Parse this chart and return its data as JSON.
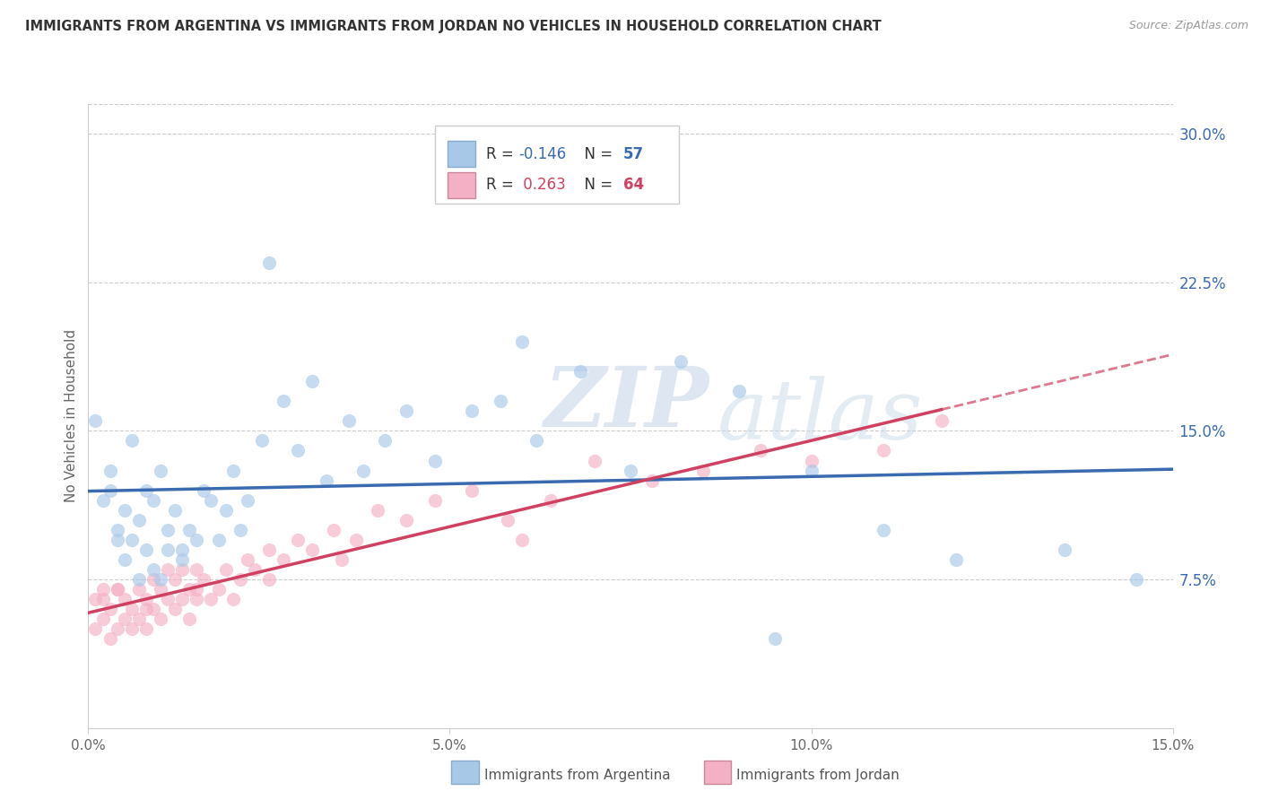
{
  "title": "IMMIGRANTS FROM ARGENTINA VS IMMIGRANTS FROM JORDAN NO VEHICLES IN HOUSEHOLD CORRELATION CHART",
  "source": "Source: ZipAtlas.com",
  "ylabel": "No Vehicles in Household",
  "legend_label1": "Immigrants from Argentina",
  "legend_label2": "Immigrants from Jordan",
  "R1": -0.146,
  "N1": 57,
  "R2": 0.263,
  "N2": 64,
  "xlim": [
    0.0,
    0.15
  ],
  "ylim": [
    0.0,
    0.315
  ],
  "xticks": [
    0.0,
    0.05,
    0.1,
    0.15
  ],
  "xtick_labels": [
    "0.0%",
    "5.0%",
    "10.0%",
    "15.0%"
  ],
  "yticks_right": [
    0.075,
    0.15,
    0.225,
    0.3
  ],
  "ytick_labels_right": [
    "7.5%",
    "15.0%",
    "22.5%",
    "30.0%"
  ],
  "color_argentina": "#a8c8e8",
  "color_jordan": "#f4b0c4",
  "line_color_argentina": "#3a6ab0",
  "line_color_jordan": "#d04060",
  "watermark_zip": "ZIP",
  "watermark_atlas": "atlas",
  "bg_color": "#ffffff",
  "scatter_alpha": 0.65,
  "scatter_size": 120,
  "argentina_x": [
    0.001,
    0.002,
    0.003,
    0.003,
    0.004,
    0.004,
    0.005,
    0.005,
    0.006,
    0.006,
    0.007,
    0.007,
    0.008,
    0.008,
    0.009,
    0.009,
    0.01,
    0.01,
    0.011,
    0.011,
    0.012,
    0.013,
    0.013,
    0.014,
    0.015,
    0.016,
    0.017,
    0.018,
    0.019,
    0.02,
    0.021,
    0.022,
    0.024,
    0.025,
    0.027,
    0.029,
    0.031,
    0.033,
    0.036,
    0.038,
    0.041,
    0.044,
    0.048,
    0.053,
    0.057,
    0.062,
    0.068,
    0.075,
    0.082,
    0.09,
    0.1,
    0.11,
    0.12,
    0.135,
    0.145,
    0.095,
    0.06
  ],
  "argentina_y": [
    0.155,
    0.115,
    0.13,
    0.12,
    0.1,
    0.095,
    0.11,
    0.085,
    0.145,
    0.095,
    0.075,
    0.105,
    0.12,
    0.09,
    0.115,
    0.08,
    0.13,
    0.075,
    0.1,
    0.09,
    0.11,
    0.085,
    0.09,
    0.1,
    0.095,
    0.12,
    0.115,
    0.095,
    0.11,
    0.13,
    0.1,
    0.115,
    0.145,
    0.235,
    0.165,
    0.14,
    0.175,
    0.125,
    0.155,
    0.13,
    0.145,
    0.16,
    0.135,
    0.16,
    0.165,
    0.145,
    0.18,
    0.13,
    0.185,
    0.17,
    0.13,
    0.1,
    0.085,
    0.09,
    0.075,
    0.045,
    0.195
  ],
  "jordan_x": [
    0.001,
    0.001,
    0.002,
    0.002,
    0.003,
    0.003,
    0.004,
    0.004,
    0.005,
    0.005,
    0.006,
    0.006,
    0.007,
    0.007,
    0.008,
    0.008,
    0.009,
    0.009,
    0.01,
    0.01,
    0.011,
    0.011,
    0.012,
    0.012,
    0.013,
    0.013,
    0.014,
    0.014,
    0.015,
    0.015,
    0.016,
    0.017,
    0.018,
    0.019,
    0.02,
    0.021,
    0.022,
    0.023,
    0.025,
    0.027,
    0.029,
    0.031,
    0.034,
    0.037,
    0.04,
    0.044,
    0.048,
    0.053,
    0.058,
    0.064,
    0.07,
    0.078,
    0.085,
    0.093,
    0.1,
    0.11,
    0.118,
    0.06,
    0.035,
    0.025,
    0.015,
    0.008,
    0.004,
    0.002
  ],
  "jordan_y": [
    0.065,
    0.05,
    0.07,
    0.055,
    0.06,
    0.045,
    0.07,
    0.05,
    0.065,
    0.055,
    0.06,
    0.05,
    0.055,
    0.07,
    0.065,
    0.05,
    0.06,
    0.075,
    0.07,
    0.055,
    0.065,
    0.08,
    0.06,
    0.075,
    0.065,
    0.08,
    0.07,
    0.055,
    0.07,
    0.065,
    0.075,
    0.065,
    0.07,
    0.08,
    0.065,
    0.075,
    0.085,
    0.08,
    0.09,
    0.085,
    0.095,
    0.09,
    0.1,
    0.095,
    0.11,
    0.105,
    0.115,
    0.12,
    0.105,
    0.115,
    0.135,
    0.125,
    0.13,
    0.14,
    0.135,
    0.14,
    0.155,
    0.095,
    0.085,
    0.075,
    0.08,
    0.06,
    0.07,
    0.065
  ]
}
